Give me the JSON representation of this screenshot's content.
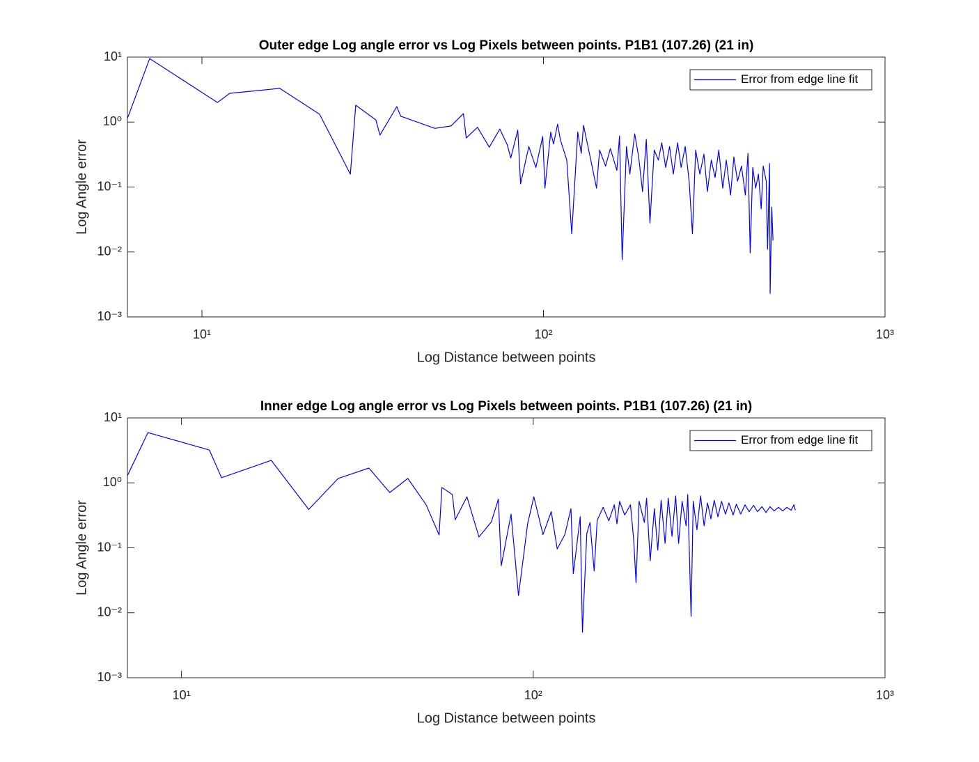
{
  "chart_data": [
    {
      "type": "line",
      "title": "Outer edge Log angle error vs Log Pixels between points. P1B1 (107.26) (21 in)",
      "xlabel": "Log Distance between points",
      "ylabel": "Log Angle error",
      "xscale": "log",
      "yscale": "log",
      "legend": "upper right",
      "xlim": [
        6.05,
        1000
      ],
      "ylim": [
        0.001,
        10
      ],
      "xticks": [
        {
          "value": 10,
          "label": "10¹"
        },
        {
          "value": 100,
          "label": "10²"
        },
        {
          "value": 1000,
          "label": "10³"
        }
      ],
      "yticks": [
        {
          "value": 0.001,
          "label": "10⁻³"
        },
        {
          "value": 0.01,
          "label": "10⁻²"
        },
        {
          "value": 0.1,
          "label": "10⁻¹"
        },
        {
          "value": 1,
          "label": "10⁰"
        },
        {
          "value": 10,
          "label": "10¹"
        }
      ],
      "x": [
        6.05,
        7.03,
        11.1,
        12.06,
        16.9,
        22.1,
        27.2,
        28.2,
        32.3,
        33.2,
        37.2,
        38.2,
        48.1,
        53.6,
        58.3,
        59.4,
        64.1,
        69.4,
        74.5,
        78.3,
        80.2,
        84.1,
        85.7,
        90.6,
        95.0,
        99.5,
        101,
        105,
        107,
        110,
        112,
        117,
        121,
        126,
        129,
        131,
        137,
        143,
        146,
        152,
        157,
        164,
        167,
        170,
        175,
        179,
        185,
        190,
        195,
        200,
        205,
        211,
        217,
        222,
        228,
        234,
        240,
        247,
        253,
        260,
        267,
        273,
        279,
        287,
        295,
        302,
        310,
        318,
        326,
        335,
        343,
        353,
        361,
        370,
        380,
        390,
        397,
        403,
        410,
        418,
        426,
        434,
        440,
        449,
        453,
        459,
        461,
        466,
        470
      ],
      "series": [
        {
          "name": "Error from edge line fit",
          "color": "#0000ff",
          "values": [
            1.14,
            9.5,
            2.0,
            2.77,
            3.3,
            1.32,
            0.158,
            1.82,
            1.08,
            0.63,
            1.73,
            1.23,
            0.8,
            0.87,
            1.35,
            0.57,
            0.83,
            0.41,
            0.78,
            0.45,
            0.28,
            0.75,
            0.112,
            0.42,
            0.2,
            0.6,
            0.096,
            0.7,
            0.46,
            0.93,
            0.54,
            0.26,
            0.019,
            0.7,
            0.33,
            0.89,
            0.29,
            0.096,
            0.37,
            0.21,
            0.39,
            0.18,
            0.61,
            0.0076,
            0.42,
            0.158,
            0.66,
            0.29,
            0.085,
            0.54,
            0.028,
            0.37,
            0.26,
            0.48,
            0.2,
            0.42,
            0.158,
            0.48,
            0.2,
            0.42,
            0.123,
            0.019,
            0.37,
            0.158,
            0.32,
            0.085,
            0.26,
            0.14,
            0.37,
            0.096,
            0.26,
            0.075,
            0.29,
            0.123,
            0.21,
            0.075,
            0.33,
            0.0097,
            0.2,
            0.096,
            0.158,
            0.046,
            0.21,
            0.123,
            0.011,
            0.23,
            0.0023,
            0.049,
            0.015
          ]
        }
      ]
    },
    {
      "type": "line",
      "title": "Inner edge Log angle error vs Log Pixels between points. P1B1 (107.26) (21 in)",
      "xlabel": "Log Distance between points",
      "ylabel": "Log Angle error",
      "xscale": "log",
      "yscale": "log",
      "legend": "upper right",
      "xlim": [
        7.02,
        1000
      ],
      "ylim": [
        0.001,
        10
      ],
      "xticks": [
        {
          "value": 10,
          "label": "10¹"
        },
        {
          "value": 100,
          "label": "10²"
        },
        {
          "value": 1000,
          "label": "10³"
        }
      ],
      "yticks": [
        {
          "value": 0.001,
          "label": "10⁻³"
        },
        {
          "value": 0.01,
          "label": "10⁻²"
        },
        {
          "value": 0.1,
          "label": "10⁻¹"
        },
        {
          "value": 1,
          "label": "10⁰"
        },
        {
          "value": 10,
          "label": "10¹"
        }
      ],
      "x": [
        7.02,
        8.03,
        12.0,
        13.0,
        18.0,
        23.0,
        27.9,
        34.1,
        39.1,
        44.0,
        49.6,
        54.0,
        55.0,
        58.9,
        60.0,
        64.8,
        70.1,
        76.0,
        79.6,
        81.1,
        86.5,
        90.8,
        96.4,
        100.4,
        106.6,
        112.5,
        117,
        123,
        128,
        130,
        136,
        138,
        142,
        145,
        149,
        152,
        158,
        164,
        170,
        173,
        176,
        182,
        189,
        193,
        196,
        200,
        207,
        210,
        215,
        221,
        226,
        231,
        237,
        242,
        248,
        254,
        259,
        265,
        272,
        275,
        281,
        285,
        292,
        299,
        306,
        313,
        320,
        327,
        335,
        343,
        352,
        360,
        370,
        378,
        389,
        400,
        411,
        423,
        434,
        447,
        459,
        471,
        484,
        498,
        512,
        526,
        541,
        551,
        556
      ],
      "series": [
        {
          "name": "Error from edge line fit",
          "color": "#0000ff",
          "values": [
            1.29,
            5.95,
            3.21,
            1.2,
            2.22,
            0.39,
            1.17,
            1.69,
            0.71,
            1.17,
            0.46,
            0.158,
            0.85,
            0.66,
            0.27,
            0.61,
            0.147,
            0.25,
            0.56,
            0.053,
            0.33,
            0.0184,
            0.234,
            0.61,
            0.16,
            0.36,
            0.096,
            0.16,
            0.4,
            0.04,
            0.3,
            0.005,
            0.166,
            0.246,
            0.044,
            0.265,
            0.42,
            0.26,
            0.46,
            0.234,
            0.52,
            0.32,
            0.46,
            0.133,
            0.029,
            0.52,
            0.246,
            0.58,
            0.063,
            0.4,
            0.092,
            0.54,
            0.117,
            0.58,
            0.15,
            0.63,
            0.117,
            0.52,
            0.218,
            0.66,
            0.0088,
            0.52,
            0.19,
            0.63,
            0.218,
            0.49,
            0.28,
            0.54,
            0.3,
            0.52,
            0.33,
            0.49,
            0.32,
            0.47,
            0.33,
            0.46,
            0.36,
            0.45,
            0.36,
            0.43,
            0.35,
            0.43,
            0.37,
            0.42,
            0.37,
            0.42,
            0.38,
            0.46,
            0.38
          ]
        }
      ]
    }
  ]
}
